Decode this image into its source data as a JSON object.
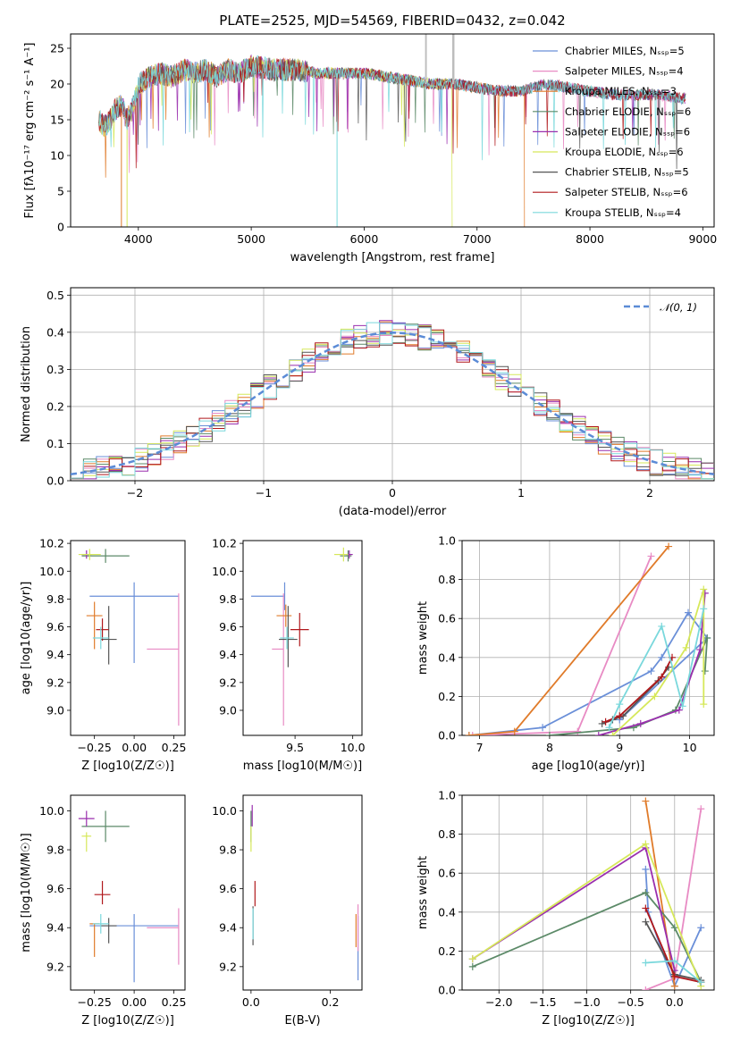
{
  "figure": {
    "title": "PLATE=2525, MJD=54569, FIBERID=0432, z=0.042"
  },
  "chart_data": [
    {
      "id": "spectrum",
      "type": "line",
      "xlabel": "wavelength [Angstrom, rest frame]",
      "ylabel": "Flux [fλ10⁻¹⁷ erg cm⁻² s⁻¹ A⁻¹]",
      "xlim": [
        3400,
        9100
      ],
      "ylim": [
        0,
        27
      ],
      "xticks": [
        4000,
        5000,
        6000,
        7000,
        8000,
        9000
      ],
      "yticks": [
        0,
        5,
        10,
        15,
        20,
        25
      ],
      "grid": false,
      "legend_position": "upper right",
      "continuum": {
        "x": [
          3650,
          3700,
          3750,
          3800,
          3850,
          3900,
          3950,
          4000,
          4050,
          4100,
          4200,
          4300,
          4400,
          4500,
          4600,
          4700,
          4800,
          4900,
          5000,
          5200,
          5400,
          5600,
          5800,
          6000,
          6200,
          6400,
          6600,
          6800,
          7000,
          7200,
          7400,
          7600,
          7800,
          8000,
          8200,
          8400,
          8600,
          8800
        ],
        "y": [
          15,
          14,
          15,
          16.5,
          17,
          15,
          16.5,
          20,
          20.5,
          21,
          21.5,
          21,
          22,
          21.5,
          22,
          21,
          22,
          21.5,
          22.5,
          22,
          22,
          21.5,
          21.5,
          21.5,
          21,
          20.5,
          20,
          20,
          19.5,
          19,
          19,
          20,
          19.5,
          19,
          18.5,
          18.5,
          18.5,
          18
        ]
      },
      "series": [
        {
          "name": "Chabrier MILES, N_SSP=5",
          "color": "#6a8fd8"
        },
        {
          "name": "Salpeter MILES, N_SSP=4",
          "color": "#e88bc4"
        },
        {
          "name": "Kroupa MILES, N_SSP=3",
          "color": "#e07b2a"
        },
        {
          "name": "Chabrier ELODIE, N_SSP=6",
          "color": "#5c8a68"
        },
        {
          "name": "Salpeter ELODIE, N_SSP=6",
          "color": "#9a2fae"
        },
        {
          "name": "Kroupa ELODIE, N_SSP=6",
          "color": "#d6e85a"
        },
        {
          "name": "Chabrier STELIB, N_SSP=5",
          "color": "#555555"
        },
        {
          "name": "Salpeter STELIB, N_SSP=6",
          "color": "#b0181c"
        },
        {
          "name": "Kroupa STELIB, N_SSP=4",
          "color": "#7ad8dc"
        }
      ]
    },
    {
      "id": "residuals",
      "type": "histogram",
      "xlabel": "(data-model)/error",
      "ylabel": "Normed distribution",
      "xlim": [
        -2.5,
        2.5
      ],
      "ylim": [
        0,
        0.52
      ],
      "xticks": [
        -2,
        -1,
        0,
        1,
        2
      ],
      "yticks": [
        0.0,
        0.1,
        0.2,
        0.3,
        0.4,
        0.5
      ],
      "grid": true,
      "legend_position": "upper right",
      "reference_curve": {
        "name": "N(0,1)",
        "color": "#5b8bd6",
        "style": "dashed"
      },
      "bin_width": 0.1
    },
    {
      "id": "age_vs_Z",
      "type": "errorbar",
      "xlabel": "Z [log10(Z/Z☉)]",
      "ylabel": "age  [log10(age/yr)]",
      "xlim": [
        -0.4,
        0.32
      ],
      "ylim": [
        8.82,
        10.22
      ],
      "xticks": [
        -0.25,
        0.0,
        0.25
      ],
      "yticks": [
        9.0,
        9.2,
        9.4,
        9.6,
        9.8,
        10.0,
        10.2
      ],
      "points": [
        {
          "x": 0.0,
          "y": 9.82,
          "xerr": [
            0.28,
            0.28
          ],
          "yerr": [
            0.48,
            0.1
          ],
          "color": "#6a8fd8"
        },
        {
          "x": 0.28,
          "y": 9.44,
          "xerr": [
            0.2,
            0.0
          ],
          "yerr": [
            0.55,
            0.4
          ],
          "color": "#e88bc4"
        },
        {
          "x": -0.25,
          "y": 9.68,
          "xerr": [
            0.05,
            0.05
          ],
          "yerr": [
            0.24,
            0.1
          ],
          "color": "#e07b2a"
        },
        {
          "x": -0.18,
          "y": 10.11,
          "xerr": [
            0.15,
            0.15
          ],
          "yerr": [
            0.05,
            0.05
          ],
          "color": "#5c8a68"
        },
        {
          "x": -0.3,
          "y": 10.12,
          "xerr": [
            0.03,
            0.03
          ],
          "yerr": [
            0.03,
            0.03
          ],
          "color": "#9a2fae"
        },
        {
          "x": -0.28,
          "y": 10.12,
          "xerr": [
            0.07,
            0.07
          ],
          "yerr": [
            0.04,
            0.04
          ],
          "color": "#d6e85a"
        },
        {
          "x": -0.16,
          "y": 9.51,
          "xerr": [
            0.05,
            0.05
          ],
          "yerr": [
            0.18,
            0.24
          ],
          "color": "#555555"
        },
        {
          "x": -0.2,
          "y": 9.58,
          "xerr": [
            0.04,
            0.04
          ],
          "yerr": [
            0.08,
            0.08
          ],
          "color": "#b0181c"
        },
        {
          "x": -0.21,
          "y": 9.52,
          "xerr": [
            0.05,
            0.05
          ],
          "yerr": [
            0.08,
            0.08
          ],
          "color": "#7ad8dc"
        }
      ]
    },
    {
      "id": "age_vs_mass",
      "type": "errorbar",
      "xlabel": "mass [log10(M/M☉)]",
      "ylabel": "",
      "xlim": [
        9.05,
        10.08
      ],
      "ylim": [
        8.82,
        10.22
      ],
      "xticks": [
        9.0,
        9.5,
        10.0
      ],
      "yticks": [
        9.0,
        9.2,
        9.4,
        9.6,
        9.8,
        10.0,
        10.2
      ],
      "points": [
        {
          "x": 9.41,
          "y": 9.82,
          "xerr": [
            0.29,
            0.0
          ],
          "yerr": [
            0.1,
            0.1
          ],
          "color": "#6a8fd8"
        },
        {
          "x": 9.4,
          "y": 9.44,
          "xerr": [
            0.1,
            0.0
          ],
          "yerr": [
            0.55,
            0.4
          ],
          "color": "#e88bc4"
        },
        {
          "x": 9.42,
          "y": 9.68,
          "xerr": [
            0.08,
            0.05
          ],
          "yerr": [
            0.08,
            0.08
          ],
          "color": "#e07b2a"
        },
        {
          "x": 9.96,
          "y": 10.11,
          "xerr": [
            0.07,
            0.03
          ],
          "yerr": [
            0.04,
            0.04
          ],
          "color": "#5c8a68"
        },
        {
          "x": 9.97,
          "y": 10.12,
          "xerr": [
            0.03,
            0.03
          ],
          "yerr": [
            0.03,
            0.03
          ],
          "color": "#9a2fae"
        },
        {
          "x": 9.92,
          "y": 10.12,
          "xerr": [
            0.08,
            0.04
          ],
          "yerr": [
            0.05,
            0.05
          ],
          "color": "#d6e85a"
        },
        {
          "x": 9.44,
          "y": 9.51,
          "xerr": [
            0.08,
            0.08
          ],
          "yerr": [
            0.2,
            0.24
          ],
          "color": "#555555"
        },
        {
          "x": 9.54,
          "y": 9.58,
          "xerr": [
            0.08,
            0.08
          ],
          "yerr": [
            0.12,
            0.12
          ],
          "color": "#b0181c"
        },
        {
          "x": 9.43,
          "y": 9.52,
          "xerr": [
            0.06,
            0.06
          ],
          "yerr": [
            0.08,
            0.08
          ],
          "color": "#7ad8dc"
        }
      ]
    },
    {
      "id": "weight_vs_age",
      "type": "line",
      "xlabel": "age  [log10(age/yr)]",
      "ylabel": "mass weight",
      "xlim": [
        6.75,
        10.35
      ],
      "ylim": [
        0,
        1.0
      ],
      "xticks": [
        7,
        8,
        9,
        10
      ],
      "yticks": [
        0.0,
        0.2,
        0.4,
        0.6,
        0.8,
        1.0
      ],
      "grid": true,
      "series": [
        {
          "color": "#6a8fd8",
          "x": [
            6.85,
            7.9,
            9.45,
            9.6,
            9.98,
            10.25,
            9.0
          ],
          "y": [
            0.0,
            0.04,
            0.33,
            0.4,
            0.63,
            0.5,
            0.08
          ]
        },
        {
          "color": "#e88bc4",
          "x": [
            6.9,
            8.4,
            9.45
          ],
          "y": [
            0.0,
            0.02,
            0.92
          ]
        },
        {
          "color": "#e07b2a",
          "x": [
            6.85,
            7.5,
            9.7
          ],
          "y": [
            0.0,
            0.02,
            0.97
          ]
        },
        {
          "color": "#5c8a68",
          "x": [
            8.0,
            9.2,
            9.8,
            10.25,
            10.22
          ],
          "y": [
            0.0,
            0.04,
            0.13,
            0.5,
            0.33
          ]
        },
        {
          "color": "#9a2fae",
          "x": [
            8.7,
            9.3,
            9.85,
            10.15,
            10.22
          ],
          "y": [
            0.0,
            0.06,
            0.13,
            0.44,
            0.73
          ]
        },
        {
          "color": "#d6e85a",
          "x": [
            8.9,
            9.5,
            9.95,
            10.2,
            10.2
          ],
          "y": [
            0.0,
            0.2,
            0.45,
            0.75,
            0.16
          ]
        },
        {
          "color": "#555555",
          "x": [
            8.75,
            8.9,
            9.05,
            9.55,
            9.7
          ],
          "y": [
            0.06,
            0.08,
            0.1,
            0.28,
            0.35
          ]
        },
        {
          "color": "#b0181c",
          "x": [
            8.8,
            9.0,
            9.6,
            9.75
          ],
          "y": [
            0.07,
            0.1,
            0.3,
            0.4
          ]
        },
        {
          "color": "#7ad8dc",
          "x": [
            8.85,
            9.0,
            9.6,
            9.9,
            10.2
          ],
          "y": [
            0.04,
            0.16,
            0.56,
            0.15,
            0.65
          ]
        }
      ]
    },
    {
      "id": "mass_vs_Z",
      "type": "errorbar",
      "xlabel": "Z [log10(Z/Z☉)]",
      "ylabel": "mass [log10(M/M☉)]",
      "xlim": [
        -0.4,
        0.32
      ],
      "ylim": [
        9.08,
        10.08
      ],
      "xticks": [
        -0.25,
        0.0,
        0.25
      ],
      "yticks": [
        9.2,
        9.4,
        9.6,
        9.8,
        10.0
      ],
      "points": [
        {
          "x": 0.0,
          "y": 9.41,
          "xerr": [
            0.28,
            0.28
          ],
          "yerr": [
            0.29,
            0.06
          ],
          "color": "#6a8fd8"
        },
        {
          "x": 0.28,
          "y": 9.4,
          "xerr": [
            0.2,
            0.0
          ],
          "yerr": [
            0.19,
            0.1
          ],
          "color": "#e88bc4"
        },
        {
          "x": -0.25,
          "y": 9.42,
          "xerr": [
            0.03,
            0.03
          ],
          "yerr": [
            0.17,
            0.0
          ],
          "color": "#e07b2a"
        },
        {
          "x": -0.18,
          "y": 9.92,
          "xerr": [
            0.15,
            0.15
          ],
          "yerr": [
            0.08,
            0.08
          ],
          "color": "#5c8a68"
        },
        {
          "x": -0.3,
          "y": 9.96,
          "xerr": [
            0.05,
            0.05
          ],
          "yerr": [
            0.04,
            0.04
          ],
          "color": "#9a2fae"
        },
        {
          "x": -0.3,
          "y": 9.87,
          "xerr": [
            0.03,
            0.03
          ],
          "yerr": [
            0.08,
            0.02
          ],
          "color": "#d6e85a"
        },
        {
          "x": -0.16,
          "y": 9.41,
          "xerr": [
            0.05,
            0.05
          ],
          "yerr": [
            0.09,
            0.04
          ],
          "color": "#555555"
        },
        {
          "x": -0.2,
          "y": 9.57,
          "xerr": [
            0.05,
            0.05
          ],
          "yerr": [
            0.05,
            0.07
          ],
          "color": "#b0181c"
        },
        {
          "x": -0.21,
          "y": 9.42,
          "xerr": [
            0.05,
            0.05
          ],
          "yerr": [
            0.05,
            0.05
          ],
          "color": "#7ad8dc"
        }
      ]
    },
    {
      "id": "mass_vs_ebv",
      "type": "errorbar",
      "xlabel": "E(B-V)",
      "ylabel": "",
      "xlim": [
        -0.02,
        0.28
      ],
      "ylim": [
        9.08,
        10.08
      ],
      "xticks": [
        0.0,
        0.2
      ],
      "yticks": [
        9.2,
        9.4,
        9.6,
        9.8,
        10.0
      ],
      "points": [
        {
          "x": 0.27,
          "y": 9.3,
          "xerr": [
            0,
            0
          ],
          "yerr": [
            0.17,
            0.16
          ],
          "color": "#6a8fd8"
        },
        {
          "x": 0.27,
          "y": 9.38,
          "xerr": [
            0,
            0
          ],
          "yerr": [
            0.1,
            0.14
          ],
          "color": "#e88bc4"
        },
        {
          "x": 0.265,
          "y": 9.38,
          "xerr": [
            0,
            0
          ],
          "yerr": [
            0.08,
            0.09
          ],
          "color": "#e07b2a"
        },
        {
          "x": 0.0,
          "y": 9.92,
          "xerr": [
            0,
            0
          ],
          "yerr": [
            0.08,
            0.08
          ],
          "color": "#5c8a68"
        },
        {
          "x": 0.003,
          "y": 9.96,
          "xerr": [
            0,
            0
          ],
          "yerr": [
            0.04,
            0.07
          ],
          "color": "#9a2fae"
        },
        {
          "x": 0.0,
          "y": 9.87,
          "xerr": [
            0,
            0
          ],
          "yerr": [
            0.08,
            0.05
          ],
          "color": "#d6e85a"
        },
        {
          "x": 0.005,
          "y": 9.41,
          "xerr": [
            0,
            0
          ],
          "yerr": [
            0.1,
            0.1
          ],
          "color": "#555555"
        },
        {
          "x": 0.01,
          "y": 9.57,
          "xerr": [
            0,
            0
          ],
          "yerr": [
            0.06,
            0.07
          ],
          "color": "#b0181c"
        },
        {
          "x": 0.005,
          "y": 9.42,
          "xerr": [
            0,
            0
          ],
          "yerr": [
            0.08,
            0.08
          ],
          "color": "#7ad8dc"
        }
      ]
    },
    {
      "id": "weight_vs_Z",
      "type": "line",
      "xlabel": "Z [log10(Z/Z☉)]",
      "ylabel": "mass weight",
      "xlim": [
        -2.42,
        0.45
      ],
      "ylim": [
        0,
        1.0
      ],
      "xticks": [
        -2.0,
        -1.5,
        -1.0,
        -0.5,
        0.0
      ],
      "yticks": [
        0.0,
        0.2,
        0.4,
        0.6,
        0.8,
        1.0
      ],
      "grid": true,
      "series": [
        {
          "color": "#6a8fd8",
          "x": [
            -0.33,
            -0.3,
            0.0,
            0.3
          ],
          "y": [
            0.62,
            0.4,
            0.02,
            0.32
          ]
        },
        {
          "color": "#e88bc4",
          "x": [
            -0.33,
            0.0,
            0.3
          ],
          "y": [
            0.0,
            0.06,
            0.93
          ]
        },
        {
          "color": "#e07b2a",
          "x": [
            -0.33,
            0.0
          ],
          "y": [
            0.97,
            0.02
          ]
        },
        {
          "color": "#5c8a68",
          "x": [
            -2.3,
            -0.33,
            0.0,
            0.3
          ],
          "y": [
            0.12,
            0.5,
            0.32,
            0.04
          ]
        },
        {
          "color": "#9a2fae",
          "x": [
            -2.3,
            -0.33,
            0.0
          ],
          "y": [
            0.16,
            0.73,
            0.1
          ]
        },
        {
          "color": "#d6e85a",
          "x": [
            -2.3,
            -0.33,
            0.3
          ],
          "y": [
            0.16,
            0.75,
            0.02
          ]
        },
        {
          "color": "#555555",
          "x": [
            -0.33,
            0.0,
            0.3
          ],
          "y": [
            0.35,
            0.08,
            0.05
          ]
        },
        {
          "color": "#b0181c",
          "x": [
            -0.33,
            0.0,
            0.3
          ],
          "y": [
            0.42,
            0.07,
            0.04
          ]
        },
        {
          "color": "#7ad8dc",
          "x": [
            -0.33,
            0.0,
            0.3
          ],
          "y": [
            0.14,
            0.15,
            0.04
          ]
        }
      ]
    }
  ]
}
